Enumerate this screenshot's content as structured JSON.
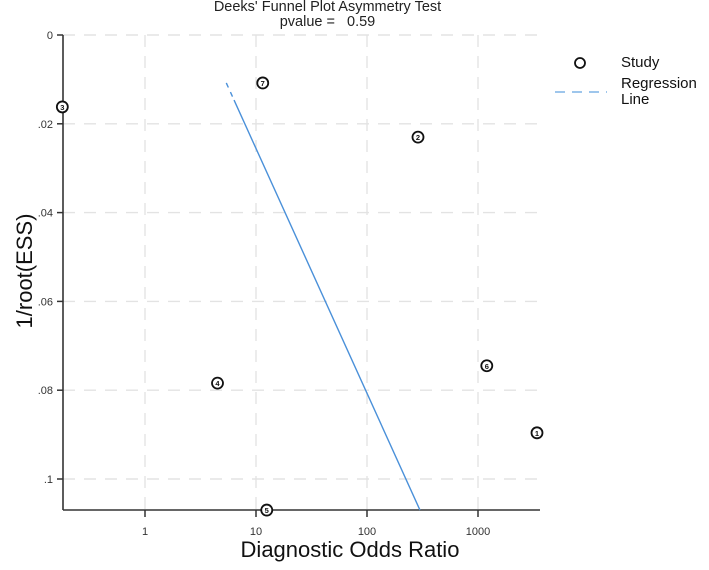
{
  "chart_data": {
    "type": "scatter",
    "title": "Deeks' Funnel Plot Asymmetry Test",
    "subtitle": "pvalue =   0.59",
    "pvalue": 0.59,
    "xlabel": "Diagnostic Odds Ratio",
    "ylabel": "1/root(ESS)",
    "x_scale": "log10",
    "x_ticks": [
      1,
      10,
      100,
      1000
    ],
    "x_tick_labels": [
      "1",
      "10",
      "100",
      "1000"
    ],
    "xlim": [
      0.18,
      3400
    ],
    "y_ticks": [
      0,
      0.02,
      0.04,
      0.06,
      0.08,
      0.1
    ],
    "y_tick_labels": [
      "0",
      ".02",
      ".04",
      ".06",
      ".08",
      ".1"
    ],
    "ylim": [
      0,
      0.107
    ],
    "y_inverted": true,
    "grid": true,
    "legend_position": "right",
    "legend": [
      {
        "label": "Study",
        "marker": "hollow-circle"
      },
      {
        "label": "Regression Line",
        "marker": "dashed-line",
        "color": "#4a90d9"
      }
    ],
    "series": [
      {
        "name": "Study",
        "points": [
          {
            "id": "1",
            "dor": 3400,
            "inv_root_ess": 0.0896
          },
          {
            "id": "2",
            "dor": 288,
            "inv_root_ess": 0.023
          },
          {
            "id": "3",
            "dor": 0.18,
            "inv_root_ess": 0.0162
          },
          {
            "id": "4",
            "dor": 4.5,
            "inv_root_ess": 0.0784
          },
          {
            "id": "5",
            "dor": 12.5,
            "inv_root_ess": 0.107
          },
          {
            "id": "6",
            "dor": 1200,
            "inv_root_ess": 0.0745
          },
          {
            "id": "7",
            "dor": 11.5,
            "inv_root_ess": 0.0108
          }
        ]
      },
      {
        "name": "Regression Line",
        "color": "#4a90d9",
        "line": [
          {
            "dor": 5.4,
            "inv_root_ess": 0.0108
          },
          {
            "dor": 300,
            "inv_root_ess": 0.107
          }
        ]
      }
    ]
  },
  "legend": {
    "study_label": "Study",
    "regression_label_1": "Regression",
    "regression_label_2": "Line"
  },
  "colors": {
    "axis": "#333333",
    "grid": "#e3e3e3",
    "regression": "#4a90d9",
    "marker": "#111111"
  }
}
